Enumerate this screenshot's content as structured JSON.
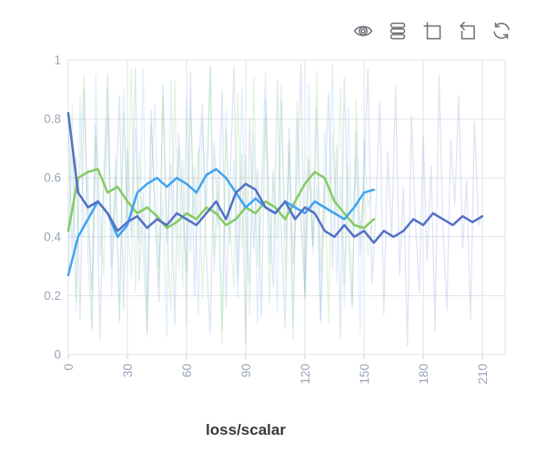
{
  "toolbar": {
    "icons": [
      {
        "name": "visibility-icon",
        "label": "toggle visibility"
      },
      {
        "name": "runs-stack-icon",
        "label": "runs list"
      },
      {
        "name": "zoom-select-icon",
        "label": "box zoom"
      },
      {
        "name": "restore-icon",
        "label": "restore view"
      },
      {
        "name": "refresh-icon",
        "label": "refresh data"
      }
    ]
  },
  "chart_data": {
    "type": "line",
    "title": "loss/scalar",
    "xlabel": "",
    "ylabel": "",
    "xlim": [
      0,
      222
    ],
    "ylim": [
      0,
      1
    ],
    "x_ticks": [
      0,
      30,
      60,
      90,
      120,
      150,
      180,
      210
    ],
    "y_ticks": [
      0,
      0.2,
      0.4,
      0.6,
      0.8,
      1
    ],
    "grid": true,
    "legend_position": "none",
    "axis_label_color": "#9aa5b8",
    "grid_color": "#e0e3e8",
    "series": [
      {
        "name": "run-blue-raw",
        "role": "raw",
        "color": "#5470c6",
        "opacity": 0.18,
        "width": 1.3,
        "x_start": 0,
        "x_step": 2,
        "values": [
          0.82,
          0.35,
          0.67,
          0.12,
          0.9,
          0.45,
          0.22,
          0.78,
          0.05,
          0.6,
          0.95,
          0.3,
          0.52,
          0.88,
          0.15,
          0.7,
          0.4,
          0.97,
          0.25,
          0.55,
          0.08,
          0.83,
          0.47,
          0.18,
          0.92,
          0.38,
          0.65,
          0.1,
          0.75,
          0.5,
          0.28,
          0.96,
          0.2,
          0.62,
          0.85,
          0.33,
          0.07,
          0.72,
          0.44,
          0.9,
          0.16,
          0.58,
          0.98,
          0.26,
          0.68,
          0.04,
          0.8,
          0.36,
          0.63,
          0.13,
          0.87,
          0.48,
          0.23,
          0.93,
          0.42,
          0.09,
          0.77,
          0.31,
          0.56,
          0.99,
          0.19,
          0.66,
          0.37,
          0.84,
          0.11,
          0.53,
          0.89,
          0.29,
          0.71,
          0.06,
          0.94,
          0.41,
          0.17,
          0.76,
          0.34,
          0.61,
          0.97,
          0.24,
          0.49,
          0.86,
          0.14,
          0.69,
          0.39,
          0.91,
          0.27,
          0.57,
          0.03,
          0.81,
          0.46,
          0.21,
          0.74,
          0.32,
          0.64,
          0.08,
          0.95,
          0.43,
          0.15,
          0.73,
          0.51,
          0.88,
          0.36,
          0.59,
          0.12,
          0.79,
          0.44,
          0.47
        ]
      },
      {
        "name": "run-skyblue-raw",
        "role": "raw",
        "color": "#3fa4f0",
        "opacity": 0.16,
        "width": 1.3,
        "x_start": 0,
        "x_step": 2,
        "values": [
          0.27,
          0.72,
          0.15,
          0.88,
          0.4,
          0.63,
          0.09,
          0.95,
          0.33,
          0.56,
          0.81,
          0.2,
          0.68,
          0.11,
          0.9,
          0.45,
          0.26,
          0.77,
          0.38,
          0.97,
          0.17,
          0.6,
          0.85,
          0.3,
          0.52,
          0.06,
          0.93,
          0.41,
          0.7,
          0.23,
          0.87,
          0.35,
          0.64,
          0.13,
          0.79,
          0.48,
          0.98,
          0.28,
          0.55,
          0.08,
          0.83,
          0.37,
          0.66,
          0.19,
          0.91,
          0.43,
          0.24,
          0.75,
          0.1,
          0.58,
          0.96,
          0.31,
          0.62,
          0.14,
          0.86,
          0.39,
          0.69,
          0.05,
          0.8,
          0.46,
          0.22,
          0.92,
          0.34,
          0.57,
          0.12,
          0.76,
          0.49,
          0.99,
          0.25,
          0.61,
          0.16,
          0.84,
          0.42,
          0.67,
          0.07,
          0.73,
          0.5,
          0.55
        ]
      },
      {
        "name": "run-green-raw",
        "role": "raw",
        "color": "#84cb62",
        "opacity": 0.22,
        "width": 1.3,
        "x_start": 0,
        "x_step": 2,
        "values": [
          0.42,
          0.85,
          0.18,
          0.65,
          0.95,
          0.32,
          0.08,
          0.74,
          0.5,
          0.27,
          0.9,
          0.38,
          0.61,
          0.12,
          0.82,
          0.44,
          0.97,
          0.21,
          0.69,
          0.35,
          0.06,
          0.78,
          0.53,
          0.25,
          0.88,
          0.4,
          0.15,
          0.93,
          0.29,
          0.66,
          0.1,
          0.84,
          0.47,
          0.71,
          0.19,
          0.58,
          0.98,
          0.34,
          0.62,
          0.04,
          0.76,
          0.43,
          0.23,
          0.89,
          0.36,
          0.68,
          0.13,
          0.94,
          0.3,
          0.54,
          0.81,
          0.17,
          0.63,
          0.39,
          0.92,
          0.26,
          0.72,
          0.09,
          0.86,
          0.45,
          0.2,
          0.67,
          0.37,
          0.96,
          0.28,
          0.59,
          0.11,
          0.75,
          0.48,
          0.91,
          0.24,
          0.64,
          0.16,
          0.87,
          0.41,
          0.57,
          0.33,
          0.44
        ]
      },
      {
        "name": "run-green-smoothed",
        "role": "smoothed",
        "color": "#84cb62",
        "opacity": 1,
        "width": 2.5,
        "x_start": 0,
        "x_step": 5,
        "values": [
          0.42,
          0.6,
          0.62,
          0.63,
          0.55,
          0.57,
          0.52,
          0.48,
          0.5,
          0.47,
          0.43,
          0.45,
          0.48,
          0.46,
          0.5,
          0.48,
          0.44,
          0.46,
          0.5,
          0.48,
          0.52,
          0.5,
          0.46,
          0.52,
          0.58,
          0.62,
          0.6,
          0.52,
          0.48,
          0.44,
          0.43,
          0.46
        ]
      },
      {
        "name": "run-skyblue-smoothed",
        "role": "smoothed",
        "color": "#3fa4f0",
        "opacity": 1,
        "width": 2.5,
        "x_start": 0,
        "x_step": 5,
        "values": [
          0.27,
          0.4,
          0.46,
          0.52,
          0.48,
          0.4,
          0.44,
          0.55,
          0.58,
          0.6,
          0.57,
          0.6,
          0.58,
          0.55,
          0.61,
          0.63,
          0.6,
          0.55,
          0.5,
          0.53,
          0.5,
          0.48,
          0.52,
          0.5,
          0.48,
          0.52,
          0.5,
          0.48,
          0.46,
          0.5,
          0.55,
          0.56
        ]
      },
      {
        "name": "run-blue-smoothed",
        "role": "smoothed",
        "color": "#5470c6",
        "opacity": 1,
        "width": 2.5,
        "x_start": 0,
        "x_step": 5,
        "values": [
          0.82,
          0.55,
          0.5,
          0.52,
          0.48,
          0.42,
          0.45,
          0.47,
          0.43,
          0.46,
          0.44,
          0.48,
          0.46,
          0.44,
          0.48,
          0.52,
          0.46,
          0.55,
          0.58,
          0.56,
          0.5,
          0.48,
          0.52,
          0.46,
          0.5,
          0.48,
          0.42,
          0.4,
          0.44,
          0.4,
          0.42,
          0.38,
          0.42,
          0.4,
          0.42,
          0.46,
          0.44,
          0.48,
          0.46,
          0.44,
          0.47,
          0.45,
          0.47
        ]
      }
    ]
  }
}
